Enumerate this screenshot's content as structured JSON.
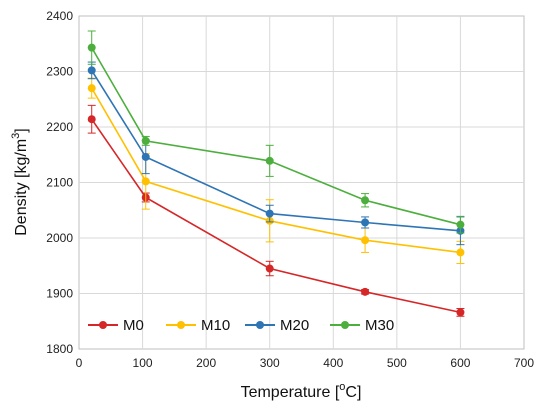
{
  "chart_data": {
    "type": "line",
    "title": "",
    "xlabel": "Temperature [",
    "xlabel_sup": "o",
    "xlabel_end": "C]",
    "ylabel": "Density [kg/m",
    "ylabel_sup": "3",
    "ylabel_end": "]",
    "xlim": [
      0,
      700
    ],
    "ylim": [
      1800,
      2400
    ],
    "xticks": [
      0,
      100,
      200,
      300,
      400,
      500,
      600,
      700
    ],
    "yticks": [
      1800,
      1900,
      2000,
      2100,
      2200,
      2300,
      2400
    ],
    "grid": true,
    "legend_position": "bottom-left",
    "x": [
      20,
      105,
      300,
      450,
      600
    ],
    "series": [
      {
        "name": "M0",
        "color": "#d62728",
        "values": [
          2214,
          2073,
          1945,
          1903,
          1866
        ],
        "errors": [
          25,
          8,
          13,
          4,
          7
        ]
      },
      {
        "name": "M10",
        "color": "#ffc000",
        "values": [
          2270,
          2102,
          2031,
          1996,
          1974
        ],
        "errors": [
          18,
          50,
          38,
          22,
          20
        ]
      },
      {
        "name": "M20",
        "color": "#2e75b6",
        "values": [
          2302,
          2146,
          2044,
          2028,
          2013
        ],
        "errors": [
          15,
          30,
          15,
          10,
          25
        ]
      },
      {
        "name": "M30",
        "color": "#4caf3d",
        "values": [
          2343,
          2175,
          2139,
          2068,
          2024
        ],
        "errors": [
          30,
          8,
          28,
          12,
          15
        ]
      }
    ]
  }
}
